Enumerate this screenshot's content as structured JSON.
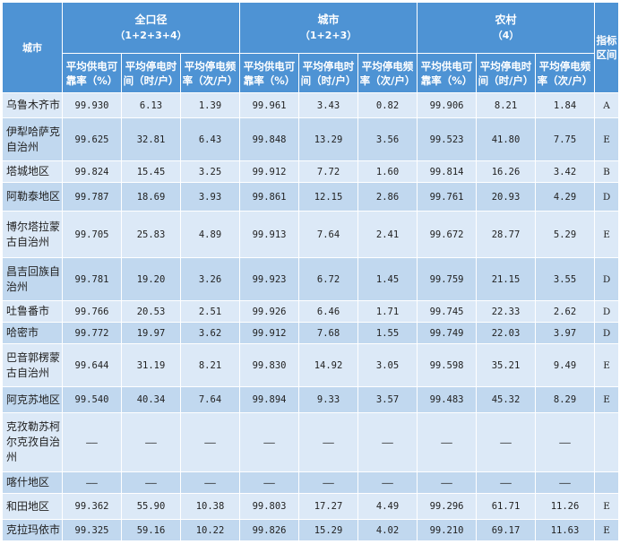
{
  "header": {
    "city": "城市",
    "indicator": "指标区间",
    "groups": [
      {
        "title": "全口径",
        "subtitle": "（1+2+3+4）"
      },
      {
        "title": "城市",
        "subtitle": "（1+2+3）"
      },
      {
        "title": "农村",
        "subtitle": "（4）"
      }
    ],
    "metrics": [
      "平均供电可靠率（%）",
      "平均停电时间（时/户）",
      "平均停电频率（次/户）"
    ]
  },
  "rows": [
    {
      "city": "乌鲁木齐市",
      "v": [
        "99.930",
        "6.13",
        "1.39",
        "99.961",
        "3.43",
        "0.82",
        "99.906",
        "8.21",
        "1.84"
      ],
      "ind": "A"
    },
    {
      "city": "伊犁哈萨克自治州",
      "v": [
        "99.625",
        "32.81",
        "6.43",
        "99.848",
        "13.29",
        "3.56",
        "99.523",
        "41.80",
        "7.75"
      ],
      "ind": "E"
    },
    {
      "city": "塔城地区",
      "v": [
        "99.824",
        "15.45",
        "3.25",
        "99.912",
        "7.72",
        "1.60",
        "99.814",
        "16.26",
        "3.42"
      ],
      "ind": "B"
    },
    {
      "city": "阿勒泰地区",
      "v": [
        "99.787",
        "18.69",
        "3.93",
        "99.861",
        "12.15",
        "2.86",
        "99.761",
        "20.93",
        "4.29"
      ],
      "ind": "D"
    },
    {
      "city": "博尔塔拉蒙古自治州",
      "v": [
        "99.705",
        "25.83",
        "4.89",
        "99.913",
        "7.64",
        "2.41",
        "99.672",
        "28.77",
        "5.29"
      ],
      "ind": "E"
    },
    {
      "city": "昌吉回族自治州",
      "v": [
        "99.781",
        "19.20",
        "3.26",
        "99.923",
        "6.72",
        "1.45",
        "99.759",
        "21.15",
        "3.55"
      ],
      "ind": "D"
    },
    {
      "city": "吐鲁番市",
      "v": [
        "99.766",
        "20.53",
        "2.51",
        "99.926",
        "6.46",
        "1.71",
        "99.745",
        "22.33",
        "2.62"
      ],
      "ind": "D"
    },
    {
      "city": "哈密市",
      "v": [
        "99.772",
        "19.97",
        "3.62",
        "99.912",
        "7.68",
        "1.55",
        "99.749",
        "22.03",
        "3.97"
      ],
      "ind": "D"
    },
    {
      "city": "巴音郭楞蒙古自治州",
      "v": [
        "99.644",
        "31.19",
        "8.21",
        "99.830",
        "14.92",
        "3.05",
        "99.598",
        "35.21",
        "9.49"
      ],
      "ind": "E"
    },
    {
      "city": "阿克苏地区",
      "v": [
        "99.540",
        "40.34",
        "7.64",
        "99.894",
        "9.33",
        "3.57",
        "99.483",
        "45.32",
        "8.29"
      ],
      "ind": "E"
    },
    {
      "city": "克孜勒苏柯尔克孜自治州",
      "v": [
        "——",
        "——",
        "——",
        "——",
        "——",
        "——",
        "——",
        "——",
        "——"
      ],
      "ind": ""
    },
    {
      "city": "喀什地区",
      "v": [
        "——",
        "——",
        "——",
        "——",
        "——",
        "——",
        "——",
        "——",
        "——"
      ],
      "ind": ""
    },
    {
      "city": "和田地区",
      "v": [
        "99.362",
        "55.90",
        "10.38",
        "99.803",
        "17.27",
        "4.49",
        "99.296",
        "61.71",
        "11.26"
      ],
      "ind": "E"
    },
    {
      "city": "克拉玛依市",
      "v": [
        "99.325",
        "59.16",
        "10.22",
        "99.826",
        "15.29",
        "4.02",
        "99.210",
        "69.17",
        "11.63"
      ],
      "ind": "E"
    }
  ]
}
